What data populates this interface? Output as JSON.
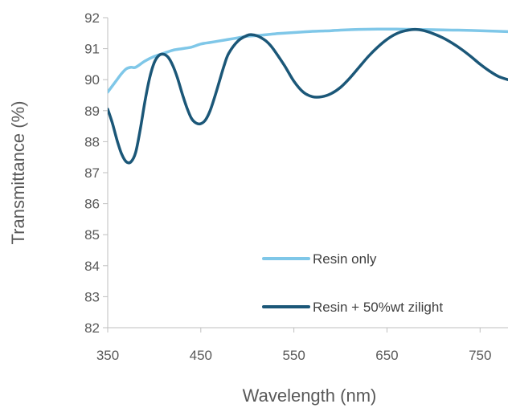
{
  "chart_data": {
    "type": "line",
    "title": "",
    "xlabel": "Wavelength (nm)",
    "ylabel": "Transmittance (%)",
    "xlim": [
      350,
      780
    ],
    "ylim": [
      82,
      92
    ],
    "xticks": [
      350,
      450,
      550,
      650,
      750
    ],
    "yticks": [
      82,
      83,
      84,
      85,
      86,
      87,
      88,
      89,
      90,
      91,
      92
    ],
    "grid": false,
    "legend_position": "bottom-right",
    "series": [
      {
        "name": "Resin only",
        "color": "#7fc7e8",
        "x": [
          350,
          355,
          360,
          365,
          370,
          375,
          380,
          390,
          400,
          410,
          420,
          430,
          440,
          450,
          460,
          470,
          480,
          490,
          500,
          510,
          520,
          530,
          540,
          550,
          560,
          570,
          580,
          590,
          600,
          620,
          640,
          660,
          680,
          700,
          720,
          740,
          760,
          780
        ],
        "y": [
          89.6,
          89.8,
          90.0,
          90.2,
          90.35,
          90.4,
          90.4,
          90.6,
          90.75,
          90.85,
          90.95,
          91.0,
          91.05,
          91.15,
          91.2,
          91.25,
          91.3,
          91.35,
          91.4,
          91.42,
          91.45,
          91.48,
          91.5,
          91.52,
          91.54,
          91.56,
          91.57,
          91.58,
          91.6,
          91.62,
          91.63,
          91.63,
          91.62,
          91.61,
          91.6,
          91.59,
          91.57,
          91.55
        ]
      },
      {
        "name": "Resin + 50%wt zilight",
        "color": "#1b5778",
        "x": [
          350,
          355,
          360,
          365,
          370,
          375,
          380,
          385,
          390,
          395,
          400,
          405,
          410,
          415,
          420,
          425,
          430,
          435,
          440,
          445,
          450,
          455,
          460,
          465,
          470,
          475,
          480,
          490,
          500,
          505,
          510,
          515,
          520,
          525,
          530,
          540,
          550,
          560,
          570,
          580,
          590,
          600,
          610,
          620,
          630,
          640,
          650,
          660,
          670,
          680,
          690,
          700,
          710,
          720,
          730,
          740,
          750,
          760,
          770,
          780
        ],
        "y": [
          89.05,
          88.6,
          88.05,
          87.6,
          87.35,
          87.35,
          87.65,
          88.4,
          89.3,
          90.05,
          90.55,
          90.78,
          90.82,
          90.72,
          90.45,
          90.05,
          89.55,
          89.1,
          88.75,
          88.6,
          88.58,
          88.7,
          89.0,
          89.45,
          89.95,
          90.45,
          90.85,
          91.25,
          91.43,
          91.45,
          91.42,
          91.35,
          91.25,
          91.1,
          90.9,
          90.45,
          89.95,
          89.6,
          89.45,
          89.45,
          89.55,
          89.75,
          90.05,
          90.4,
          90.75,
          91.05,
          91.3,
          91.48,
          91.58,
          91.62,
          91.58,
          91.48,
          91.35,
          91.18,
          90.98,
          90.75,
          90.5,
          90.28,
          90.1,
          90.0
        ]
      }
    ]
  }
}
